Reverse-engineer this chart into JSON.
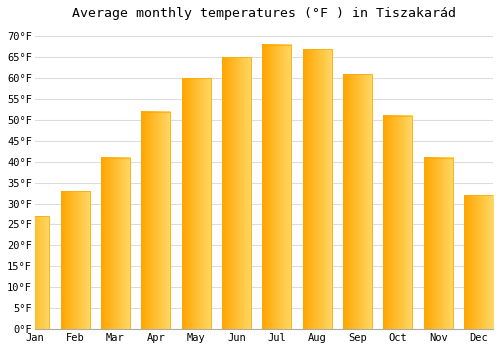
{
  "title": "Average monthly temperatures (°F ) in TiszakarÃd",
  "title_display": "Average monthly temperatures (°F ) in Tiszakarád",
  "months": [
    "Jan",
    "Feb",
    "Mar",
    "Apr",
    "May",
    "Jun",
    "Jul",
    "Aug",
    "Sep",
    "Oct",
    "Nov",
    "Dec"
  ],
  "values": [
    27,
    33,
    41,
    52,
    60,
    65,
    68,
    67,
    61,
    51,
    41,
    32
  ],
  "bar_color_left": "#FFA500",
  "bar_color_right": "#FFD966",
  "background_color": "#ffffff",
  "grid_color": "#dddddd",
  "yticks": [
    0,
    5,
    10,
    15,
    20,
    25,
    30,
    35,
    40,
    45,
    50,
    55,
    60,
    65,
    70
  ],
  "ylim": [
    0,
    72
  ],
  "title_fontsize": 9.5,
  "tick_fontsize": 7.5,
  "font_family": "monospace"
}
